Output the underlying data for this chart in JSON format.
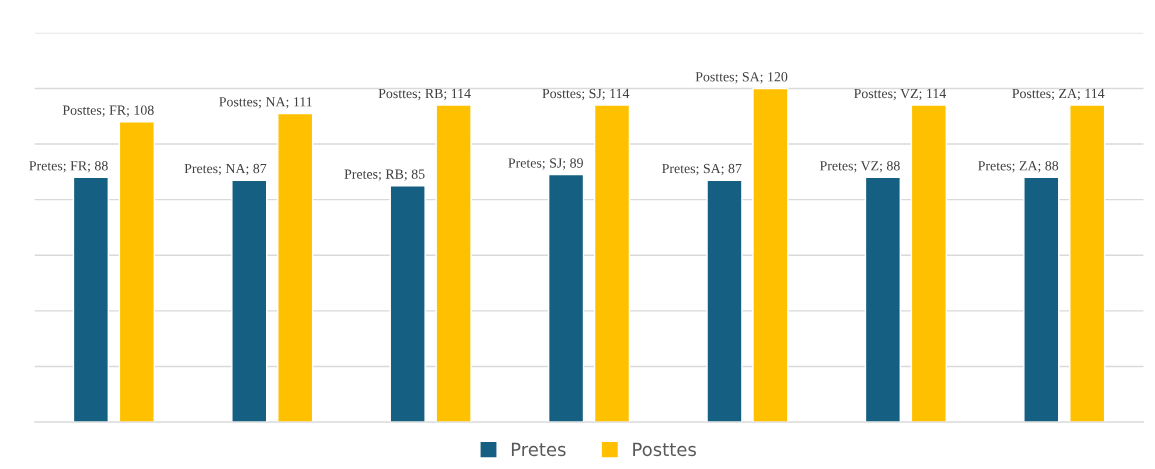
{
  "chart_data": {
    "type": "bar",
    "categories": [
      null,
      null,
      null,
      null,
      null,
      null,
      null
    ],
    "series": [
      {
        "name": "Pretes",
        "color": "#156082",
        "values": [
          88,
          87,
          85,
          89,
          87,
          88,
          88
        ],
        "value_labels": [
          "Pretes; FR; 88",
          "Pretes; NA; 87",
          "Pretes; RB; 85",
          "Pretes; SJ; 89",
          "Pretes; SA; 87",
          "Pretes; VZ; 88",
          "Pretes; ZA; 88"
        ]
      },
      {
        "name": "Posttes",
        "color": "#ffc000",
        "values": [
          108,
          111,
          114,
          114,
          120,
          114,
          114
        ],
        "value_labels": [
          "Posttes; FR; 108",
          "Posttes; NA; 111",
          "Posttes; RB; 114",
          "Posttes; SJ; 114",
          "Posttes; SA; 120",
          "Posttes; VZ; 114",
          "Posttes; ZA; 114"
        ]
      }
    ],
    "ylim": [
      0,
      140
    ],
    "yticks": [
      {
        "value": 0,
        "label": null
      },
      {
        "value": 20,
        "label": null
      },
      {
        "value": 40,
        "label": null
      },
      {
        "value": 60,
        "label": null
      },
      {
        "value": 80,
        "label": null
      },
      {
        "value": 100,
        "label": null
      },
      {
        "value": 120,
        "label": null
      },
      {
        "value": 140,
        "label": null
      }
    ],
    "grid": "y",
    "legend": "bottom"
  }
}
